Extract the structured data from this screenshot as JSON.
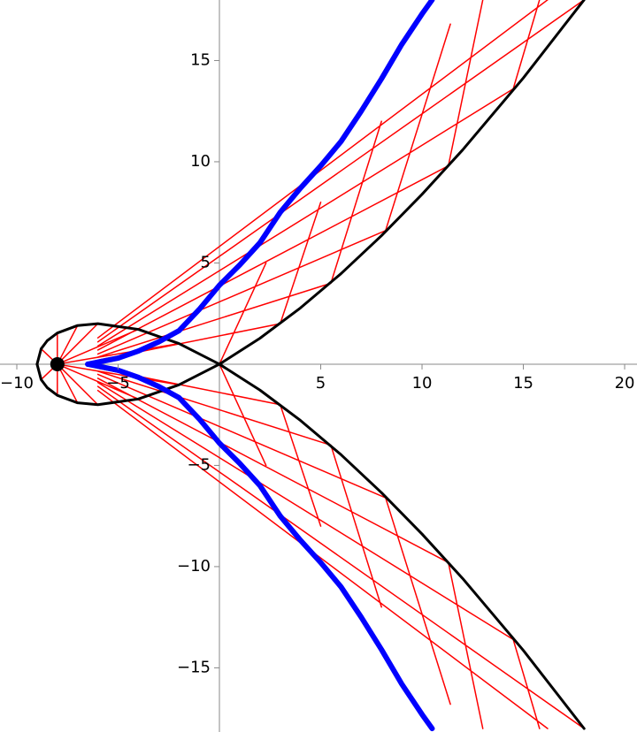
{
  "chart_data": {
    "type": "line",
    "xlim": [
      -10.83,
      20.61
    ],
    "ylim": [
      -18.17,
      17.99
    ],
    "xticks": [
      {
        "value": -10,
        "label": "−10"
      },
      {
        "value": -5,
        "label": "−5"
      },
      5,
      10,
      15,
      20
    ],
    "yticks": [
      {
        "value": -15,
        "label": "−15"
      },
      {
        "value": -10,
        "label": "−10"
      },
      {
        "value": -5,
        "label": "−5"
      },
      5,
      10,
      15
    ],
    "series": [
      {
        "color": "#ff0000",
        "width": 1.5,
        "x": [
          -8,
          -8.8,
          null,
          -8,
          -8,
          null,
          -8,
          -7,
          null,
          -8,
          -6,
          null,
          -8,
          -4,
          null,
          -8,
          -2,
          null,
          -6,
          18,
          null,
          -6,
          14.5,
          null,
          -6,
          11.3,
          null,
          -6,
          8.2,
          null,
          -6,
          5.5,
          null,
          -6,
          3,
          null,
          -6,
          16.2,
          null,
          0,
          2.3,
          null,
          3,
          5,
          null,
          5.5,
          8,
          null,
          8.2,
          11.4,
          null,
          11.3,
          13,
          null,
          14.5,
          15.8,
          null,
          -8,
          -8.8,
          null,
          -8,
          -8,
          null,
          -8,
          -7,
          null,
          -8,
          -6,
          null,
          -8,
          -4,
          null,
          -8,
          -2,
          null,
          -6,
          18,
          null,
          -6,
          14.5,
          null,
          -6,
          11.3,
          null,
          -6,
          8.2,
          null,
          -6,
          5.5,
          null,
          -6,
          3,
          null,
          -6,
          16.2,
          null,
          0,
          2.3,
          null,
          3,
          5,
          null,
          5.5,
          8,
          null,
          8.2,
          11.4,
          null,
          11.3,
          13,
          null,
          14.5,
          15.8
        ],
        "y": [
          0,
          0.76,
          null,
          0,
          1.54,
          null,
          0,
          1.91,
          null,
          0,
          2,
          null,
          0,
          1.72,
          null,
          0,
          1.02,
          null,
          1.1,
          18,
          null,
          0.9,
          13.6,
          null,
          0.7,
          9.8,
          null,
          0.5,
          6.6,
          null,
          0.35,
          4,
          null,
          0.2,
          2,
          null,
          1.3,
          18,
          null,
          0,
          5,
          null,
          2,
          8,
          null,
          4,
          12,
          null,
          6.6,
          16.8,
          null,
          9.8,
          18,
          null,
          13.6,
          18,
          null,
          0,
          -0.76,
          null,
          0,
          -1.54,
          null,
          0,
          -1.91,
          null,
          0,
          -2,
          null,
          0,
          -1.72,
          null,
          0,
          -1.02,
          null,
          -1.1,
          -18,
          null,
          -0.9,
          -13.6,
          null,
          -0.7,
          -9.8,
          null,
          -0.5,
          -6.6,
          null,
          -0.35,
          -4,
          null,
          -0.2,
          -2,
          null,
          -1.3,
          -18,
          null,
          0,
          -5,
          null,
          -2,
          -8,
          null,
          -4,
          -12,
          null,
          -6.6,
          -16.8,
          null,
          -9.8,
          -18,
          null,
          -13.6,
          -18
        ]
      },
      {
        "color": "#000000",
        "width": 3,
        "x": [
          18,
          15,
          12,
          10,
          8,
          6,
          4,
          2,
          0,
          -2,
          -4,
          -6,
          -7,
          -8,
          -8.5,
          -8.8,
          -9
        ],
        "y": [
          18,
          14.14,
          10.58,
          8.39,
          6.35,
          4.47,
          2.78,
          1.28,
          0,
          -1.02,
          -1.72,
          -2,
          -1.91,
          -1.54,
          -1.16,
          -0.76,
          0
        ]
      },
      {
        "color": "#000000",
        "width": 3,
        "x": [
          18,
          15,
          12,
          10,
          8,
          6,
          4,
          2,
          0,
          -2,
          -4,
          -6,
          -7,
          -8,
          -8.5,
          -8.8,
          -9
        ],
        "y": [
          -18,
          -14.14,
          -10.58,
          -8.39,
          -6.35,
          -4.47,
          -2.78,
          -1.28,
          0,
          1.02,
          1.72,
          2,
          1.91,
          1.54,
          1.16,
          0.76,
          0
        ]
      },
      {
        "color": "#0000ff",
        "width": 6,
        "x": [
          -6.5,
          -5,
          -4,
          -3,
          -2,
          -1,
          0,
          1,
          2,
          3,
          4,
          5,
          6,
          7,
          8,
          9,
          10,
          10.5
        ],
        "y": [
          0,
          0.3,
          0.65,
          1.1,
          1.65,
          2.7,
          3.9,
          4.9,
          6,
          7.5,
          8.7,
          9.8,
          11,
          12.5,
          14.1,
          15.8,
          17.3,
          18
        ]
      },
      {
        "color": "#0000ff",
        "width": 6,
        "x": [
          -6.5,
          -5,
          -4,
          -3,
          -2,
          -1,
          0,
          1,
          2,
          3,
          4,
          5,
          6,
          7,
          8,
          9,
          10,
          10.5
        ],
        "y": [
          0,
          -0.3,
          -0.65,
          -1.1,
          -1.65,
          -2.7,
          -3.9,
          -4.9,
          -6,
          -7.5,
          -8.7,
          -9.8,
          -11,
          -12.5,
          -14.1,
          -15.8,
          -17.3,
          -18
        ]
      }
    ],
    "markers": {
      "color": "#000000",
      "x": [
        -8
      ],
      "y": [
        0
      ]
    }
  }
}
